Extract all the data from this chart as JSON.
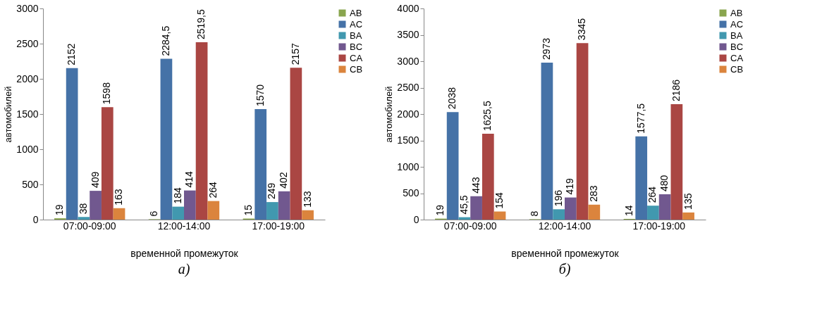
{
  "chart_data": [
    {
      "type": "bar",
      "title": "а)",
      "xlabel": "временной промежуток",
      "ylabel": "автомобилей",
      "categories": [
        "07:00-09:00",
        "12:00-14:00",
        "17:00-19:00"
      ],
      "ylim": [
        0,
        3000
      ],
      "yticks": [
        0,
        500,
        1000,
        1500,
        2000,
        2500,
        3000
      ],
      "legend": "right",
      "series": [
        {
          "name": "AB",
          "color": "#89a54e",
          "values": [
            19,
            6,
            15
          ],
          "value_labels": [
            "19",
            "6",
            "15"
          ]
        },
        {
          "name": "AC",
          "color": "#4572a7",
          "values": [
            2152,
            2284.5,
            1570
          ],
          "value_labels": [
            "2152",
            "2284,5",
            "1570"
          ]
        },
        {
          "name": "BA",
          "color": "#4198af",
          "values": [
            38,
            184,
            249
          ],
          "value_labels": [
            "38",
            "184",
            "249"
          ]
        },
        {
          "name": "BC",
          "color": "#71588f",
          "values": [
            409,
            414,
            402
          ],
          "value_labels": [
            "409",
            "414",
            "402"
          ]
        },
        {
          "name": "CA",
          "color": "#aa4643",
          "values": [
            1598,
            2519.5,
            2157
          ],
          "value_labels": [
            "1598",
            "2519,5",
            "2157"
          ]
        },
        {
          "name": "CB",
          "color": "#db843d",
          "values": [
            163,
            264,
            133
          ],
          "value_labels": [
            "163",
            "264",
            "133"
          ]
        }
      ]
    },
    {
      "type": "bar",
      "title": "б)",
      "xlabel": "временной промежуток",
      "ylabel": "автомобилей",
      "categories": [
        "07:00-09:00",
        "12:00-14:00",
        "17:00-19:00"
      ],
      "ylim": [
        0,
        4000
      ],
      "yticks": [
        0,
        500,
        1000,
        1500,
        2000,
        2500,
        3000,
        3500,
        4000
      ],
      "legend": "right",
      "series": [
        {
          "name": "AB",
          "color": "#89a54e",
          "values": [
            19,
            8,
            14
          ],
          "value_labels": [
            "19",
            "8",
            "14"
          ]
        },
        {
          "name": "AC",
          "color": "#4572a7",
          "values": [
            2038,
            2973,
            1577.5
          ],
          "value_labels": [
            "2038",
            "2973",
            "1577,5"
          ]
        },
        {
          "name": "BA",
          "color": "#4198af",
          "values": [
            45.5,
            196,
            264
          ],
          "value_labels": [
            "45,5",
            "196",
            "264"
          ]
        },
        {
          "name": "BC",
          "color": "#71588f",
          "values": [
            443,
            419,
            480
          ],
          "value_labels": [
            "443",
            "419",
            "480"
          ]
        },
        {
          "name": "CA",
          "color": "#aa4643",
          "values": [
            1625.5,
            3345,
            2186
          ],
          "value_labels": [
            "1625,5",
            "3345",
            "2186"
          ]
        },
        {
          "name": "CB",
          "color": "#db843d",
          "values": [
            154,
            283,
            135
          ],
          "value_labels": [
            "154",
            "283",
            "135"
          ]
        }
      ]
    }
  ]
}
